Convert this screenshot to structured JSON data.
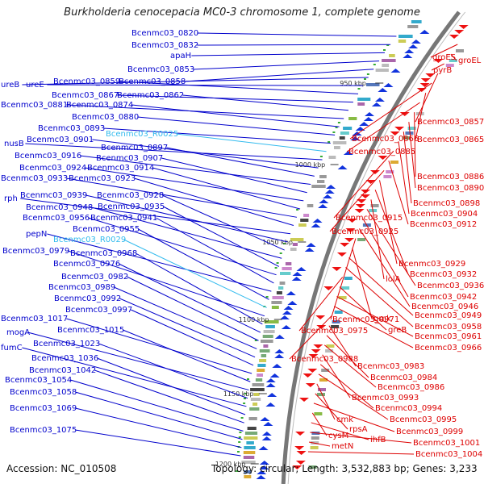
{
  "title": "Burkholderia cenocepacia MC0-3 chromosome 1, complete genome",
  "footer": {
    "accession": "Accession: NC_010508",
    "topology": "Topology: circular; Length: 3,532,883 bp; Genes: 3,233"
  },
  "colors": {
    "left_genes": "#0000cc",
    "rna_genes": "#33bbee",
    "right_genes": "#dd0000",
    "backbone": "#777777",
    "gc_skew": "#33aa33"
  },
  "scale_ticks": [
    "950 kbp",
    "1000 kbp",
    "1050 kbp",
    "1100 kbp",
    "1150 kbp",
    "1200 kbp"
  ],
  "left_labels": [
    {
      "text": "Bcenmc03_0820",
      "type": "gene"
    },
    {
      "text": "Bcenmc03_0832",
      "type": "gene"
    },
    {
      "text": "apaH",
      "type": "gene"
    },
    {
      "text": "Bcenmc03_0853",
      "type": "gene"
    },
    {
      "text": "Bcenmc03_0858",
      "type": "gene"
    },
    {
      "text": "ureB",
      "type": "gene"
    },
    {
      "text": "ureE",
      "type": "gene"
    },
    {
      "text": "Bcenmc03_0859",
      "type": "gene"
    },
    {
      "text": "Bcenmc03_0867",
      "type": "gene"
    },
    {
      "text": "Bcenmc03_0862",
      "type": "gene"
    },
    {
      "text": "Bcenmc03_0881",
      "type": "gene"
    },
    {
      "text": "Bcenmc03_0874",
      "type": "gene"
    },
    {
      "text": "Bcenmc03_0880",
      "type": "gene"
    },
    {
      "text": "Bcenmc03_0893",
      "type": "gene"
    },
    {
      "text": "Bcenmc03_R0025",
      "type": "rna"
    },
    {
      "text": "nusB",
      "type": "gene"
    },
    {
      "text": "Bcenmc03_0901",
      "type": "gene"
    },
    {
      "text": "Bcenmc03_0897",
      "type": "gene"
    },
    {
      "text": "Bcenmc03_0916",
      "type": "gene"
    },
    {
      "text": "Bcenmc03_0907",
      "type": "gene"
    },
    {
      "text": "Bcenmc03_0924",
      "type": "gene"
    },
    {
      "text": "Bcenmc03_0914",
      "type": "gene"
    },
    {
      "text": "Bcenmc03_0933",
      "type": "gene"
    },
    {
      "text": "Bcenmc03_0923",
      "type": "gene"
    },
    {
      "text": "rph",
      "type": "gene"
    },
    {
      "text": "Bcenmc03_0939",
      "type": "gene"
    },
    {
      "text": "Bcenmc03_0928",
      "type": "gene"
    },
    {
      "text": "Bcenmc03_0948",
      "type": "gene"
    },
    {
      "text": "Bcenmc03_0935",
      "type": "gene"
    },
    {
      "text": "Bcenmc03_0956",
      "type": "gene"
    },
    {
      "text": "Bcenmc03_0941",
      "type": "gene"
    },
    {
      "text": "pepN",
      "type": "gene"
    },
    {
      "text": "Bcenmc03_0955",
      "type": "gene"
    },
    {
      "text": "Bcenmc03_R0029",
      "type": "rna"
    },
    {
      "text": "Bcenmc03_0979",
      "type": "gene"
    },
    {
      "text": "Bcenmc03_0968",
      "type": "gene"
    },
    {
      "text": "Bcenmc03_0976",
      "type": "gene"
    },
    {
      "text": "Bcenmc03_0982",
      "type": "gene"
    },
    {
      "text": "Bcenmc03_0989",
      "type": "gene"
    },
    {
      "text": "Bcenmc03_0992",
      "type": "gene"
    },
    {
      "text": "Bcenmc03_0997",
      "type": "gene"
    },
    {
      "text": "Bcenmc03_1017",
      "type": "gene"
    },
    {
      "text": "Bcenmc03_1015",
      "type": "gene"
    },
    {
      "text": "mogA",
      "type": "gene"
    },
    {
      "text": "Bcenmc03_1023",
      "type": "gene"
    },
    {
      "text": "fumC",
      "type": "gene"
    },
    {
      "text": "Bcenmc03_1036",
      "type": "gene"
    },
    {
      "text": "Bcenmc03_1042",
      "type": "gene"
    },
    {
      "text": "Bcenmc03_1054",
      "type": "gene"
    },
    {
      "text": "Bcenmc03_1058",
      "type": "gene"
    },
    {
      "text": "Bcenmc03_1069",
      "type": "gene"
    },
    {
      "text": "Bcenmc03_1075",
      "type": "gene"
    }
  ],
  "right_labels": [
    {
      "text": "groES"
    },
    {
      "text": "groEL"
    },
    {
      "text": "pyrB"
    },
    {
      "text": "Bcenmc03_0857"
    },
    {
      "text": "Bcenmc03_0866"
    },
    {
      "text": "Bcenmc03_0865"
    },
    {
      "text": "Bcenmc03_0885"
    },
    {
      "text": "Bcenmc03_0886"
    },
    {
      "text": "Bcenmc03_0890"
    },
    {
      "text": "Bcenmc03_0898"
    },
    {
      "text": "Bcenmc03_0904"
    },
    {
      "text": "Bcenmc03_0915"
    },
    {
      "text": "Bcenmc03_0912"
    },
    {
      "text": "Bcenmc03_0925"
    },
    {
      "text": "Bcenmc03_0929"
    },
    {
      "text": "Bcenmc03_0932"
    },
    {
      "text": "lolA"
    },
    {
      "text": "Bcenmc03_0936"
    },
    {
      "text": "Bcenmc03_0942"
    },
    {
      "text": "Bcenmc03_0946"
    },
    {
      "text": "Bcenmc03_0971"
    },
    {
      "text": "gmk"
    },
    {
      "text": "Bcenmc03_0949"
    },
    {
      "text": "Bcenmc03_0958"
    },
    {
      "text": "Bcenmc03_0975"
    },
    {
      "text": "greB"
    },
    {
      "text": "Bcenmc03_0961"
    },
    {
      "text": "Bcenmc03_0966"
    },
    {
      "text": "Bcenmc03_0988"
    },
    {
      "text": "Bcenmc03_0983"
    },
    {
      "text": "Bcenmc03_0984"
    },
    {
      "text": "Bcenmc03_0986"
    },
    {
      "text": "Bcenmc03_0993"
    },
    {
      "text": "Bcenmc03_0994"
    },
    {
      "text": "Bcenmc03_0995"
    },
    {
      "text": "cmk"
    },
    {
      "text": "rpsA"
    },
    {
      "text": "Bcenmc03_0999"
    },
    {
      "text": "cysM"
    },
    {
      "text": "ihfB"
    },
    {
      "text": "Bcenmc03_1001"
    },
    {
      "text": "metN"
    },
    {
      "text": "Bcenmc03_1004"
    }
  ]
}
